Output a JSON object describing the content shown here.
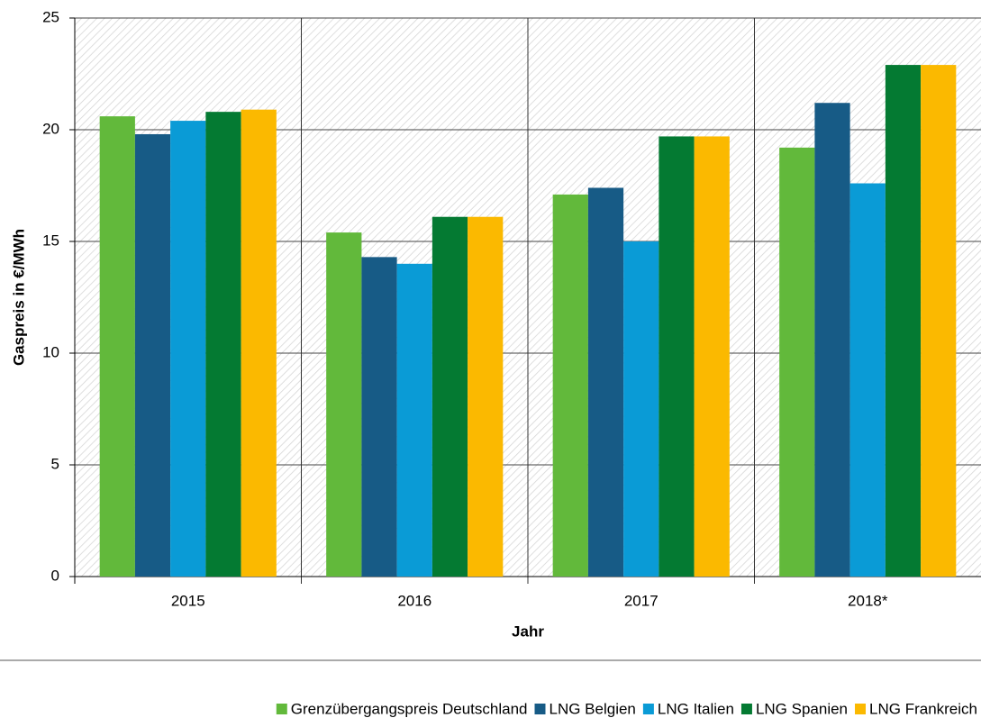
{
  "chart_data": {
    "type": "bar",
    "categories": [
      "2015",
      "2016",
      "2017",
      "2018*"
    ],
    "series": [
      {
        "name": "Grenzübergangspreis Deutschland",
        "color": "#62b93b",
        "values": [
          20.6,
          15.4,
          17.1,
          19.2
        ]
      },
      {
        "name": "LNG Belgien",
        "color": "#175b86",
        "values": [
          19.8,
          14.3,
          17.4,
          21.2
        ]
      },
      {
        "name": "LNG Italien",
        "color": "#0a9bd6",
        "values": [
          20.4,
          14.0,
          15.0,
          17.6
        ]
      },
      {
        "name": "LNG Spanien",
        "color": "#047a32",
        "values": [
          20.8,
          16.1,
          19.7,
          22.9
        ]
      },
      {
        "name": "LNG Frankreich",
        "color": "#fbb900",
        "values": [
          20.9,
          16.1,
          19.7,
          22.9
        ]
      }
    ],
    "y_label": "Gaspreis in €/MWh",
    "x_label": "Jahr",
    "ylim": [
      0,
      25
    ],
    "yticks": [
      0,
      5,
      10,
      15,
      20,
      25
    ],
    "grid": true
  }
}
